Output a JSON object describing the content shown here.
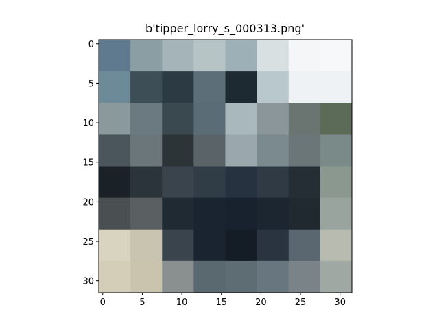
{
  "chart_data": {
    "type": "image",
    "title": "b'tipper_lorry_s_000313.png'",
    "xlim": [
      -0.5,
      31.5
    ],
    "ylim": [
      31.5,
      -0.5
    ],
    "xticks": [
      0,
      5,
      10,
      15,
      20,
      25,
      30
    ],
    "yticks": [
      0,
      5,
      10,
      15,
      20,
      25,
      30
    ]
  }
}
